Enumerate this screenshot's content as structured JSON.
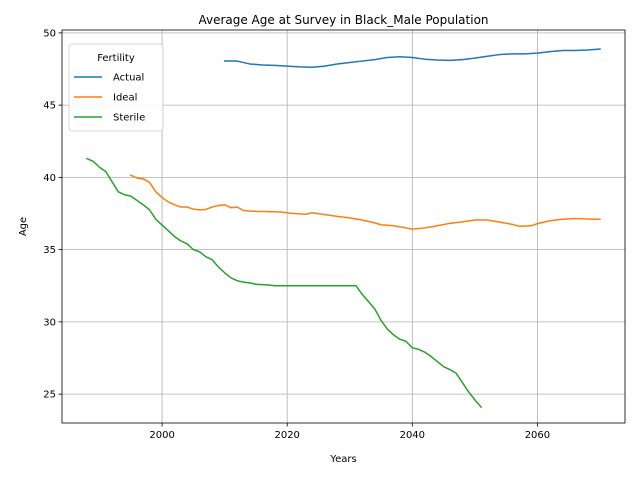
{
  "chart_data": {
    "type": "line",
    "title": "Average Age at Survey in Black_Male Population",
    "xlabel": "Years",
    "ylabel": "Age",
    "xlim": [
      1984,
      2074
    ],
    "ylim": [
      23.0,
      50.2
    ],
    "xticks": [
      2000,
      2020,
      2040,
      2060
    ],
    "yticks": [
      25,
      30,
      35,
      40,
      45,
      50
    ],
    "grid": true,
    "legend": {
      "title": "Fertility",
      "position": "top-left"
    },
    "series": [
      {
        "name": "Actual",
        "color": "#1f77b4",
        "points": [
          [
            2010,
            48.05
          ],
          [
            2012,
            48.05
          ],
          [
            2014,
            47.85
          ],
          [
            2016,
            47.78
          ],
          [
            2018,
            47.75
          ],
          [
            2020,
            47.7
          ],
          [
            2022,
            47.65
          ],
          [
            2024,
            47.62
          ],
          [
            2026,
            47.7
          ],
          [
            2028,
            47.85
          ],
          [
            2030,
            47.95
          ],
          [
            2032,
            48.05
          ],
          [
            2034,
            48.15
          ],
          [
            2036,
            48.3
          ],
          [
            2038,
            48.35
          ],
          [
            2040,
            48.3
          ],
          [
            2042,
            48.18
          ],
          [
            2044,
            48.12
          ],
          [
            2046,
            48.1
          ],
          [
            2048,
            48.15
          ],
          [
            2050,
            48.25
          ],
          [
            2052,
            48.38
          ],
          [
            2054,
            48.5
          ],
          [
            2056,
            48.55
          ],
          [
            2058,
            48.55
          ],
          [
            2060,
            48.6
          ],
          [
            2062,
            48.7
          ],
          [
            2064,
            48.78
          ],
          [
            2066,
            48.78
          ],
          [
            2068,
            48.82
          ],
          [
            2070,
            48.88
          ]
        ]
      },
      {
        "name": "Ideal",
        "color": "#ff7f0e",
        "points": [
          [
            1995,
            40.15
          ],
          [
            1996,
            39.95
          ],
          [
            1997,
            39.9
          ],
          [
            1998,
            39.65
          ],
          [
            1999,
            39.0
          ],
          [
            2000,
            38.6
          ],
          [
            2001,
            38.3
          ],
          [
            2002,
            38.1
          ],
          [
            2003,
            37.95
          ],
          [
            2004,
            37.95
          ],
          [
            2005,
            37.8
          ],
          [
            2006,
            37.75
          ],
          [
            2007,
            37.78
          ],
          [
            2008,
            37.95
          ],
          [
            2009,
            38.05
          ],
          [
            2010,
            38.1
          ],
          [
            2011,
            37.9
          ],
          [
            2012,
            37.95
          ],
          [
            2013,
            37.7
          ],
          [
            2015,
            37.65
          ],
          [
            2017,
            37.63
          ],
          [
            2019,
            37.6
          ],
          [
            2021,
            37.5
          ],
          [
            2023,
            37.45
          ],
          [
            2024,
            37.55
          ],
          [
            2026,
            37.42
          ],
          [
            2028,
            37.3
          ],
          [
            2030,
            37.2
          ],
          [
            2032,
            37.05
          ],
          [
            2034,
            36.85
          ],
          [
            2035,
            36.72
          ],
          [
            2037,
            36.65
          ],
          [
            2039,
            36.5
          ],
          [
            2040,
            36.42
          ],
          [
            2042,
            36.5
          ],
          [
            2044,
            36.65
          ],
          [
            2046,
            36.82
          ],
          [
            2048,
            36.92
          ],
          [
            2050,
            37.05
          ],
          [
            2052,
            37.05
          ],
          [
            2054,
            36.9
          ],
          [
            2056,
            36.75
          ],
          [
            2057,
            36.62
          ],
          [
            2059,
            36.65
          ],
          [
            2060,
            36.8
          ],
          [
            2062,
            37.0
          ],
          [
            2064,
            37.1
          ],
          [
            2066,
            37.15
          ],
          [
            2068,
            37.12
          ],
          [
            2070,
            37.1
          ]
        ]
      },
      {
        "name": "Sterile",
        "color": "#2ca02c",
        "points": [
          [
            1988,
            41.3
          ],
          [
            1989,
            41.1
          ],
          [
            1990,
            40.7
          ],
          [
            1991,
            40.4
          ],
          [
            1992,
            39.7
          ],
          [
            1993,
            39.0
          ],
          [
            1994,
            38.8
          ],
          [
            1995,
            38.7
          ],
          [
            1996,
            38.4
          ],
          [
            1997,
            38.1
          ],
          [
            1998,
            37.75
          ],
          [
            1999,
            37.1
          ],
          [
            2000,
            36.7
          ],
          [
            2001,
            36.3
          ],
          [
            2002,
            35.9
          ],
          [
            2003,
            35.6
          ],
          [
            2004,
            35.4
          ],
          [
            2005,
            35.0
          ],
          [
            2006,
            34.85
          ],
          [
            2007,
            34.5
          ],
          [
            2008,
            34.3
          ],
          [
            2009,
            33.8
          ],
          [
            2010,
            33.4
          ],
          [
            2011,
            33.05
          ],
          [
            2012,
            32.85
          ],
          [
            2013,
            32.75
          ],
          [
            2014,
            32.7
          ],
          [
            2015,
            32.6
          ],
          [
            2017,
            32.55
          ],
          [
            2018,
            32.5
          ],
          [
            2020,
            32.5
          ],
          [
            2022,
            32.5
          ],
          [
            2025,
            32.5
          ],
          [
            2028,
            32.5
          ],
          [
            2031,
            32.5
          ],
          [
            2032,
            31.9
          ],
          [
            2033,
            31.4
          ],
          [
            2034,
            30.9
          ],
          [
            2035,
            30.1
          ],
          [
            2036,
            29.5
          ],
          [
            2037,
            29.1
          ],
          [
            2038,
            28.8
          ],
          [
            2039,
            28.65
          ],
          [
            2040,
            28.2
          ],
          [
            2041,
            28.1
          ],
          [
            2042,
            27.9
          ],
          [
            2043,
            27.6
          ],
          [
            2044,
            27.25
          ],
          [
            2045,
            26.9
          ],
          [
            2046,
            26.7
          ],
          [
            2047,
            26.45
          ],
          [
            2048,
            25.8
          ],
          [
            2049,
            25.15
          ],
          [
            2050,
            24.6
          ],
          [
            2051,
            24.1
          ]
        ]
      }
    ]
  }
}
